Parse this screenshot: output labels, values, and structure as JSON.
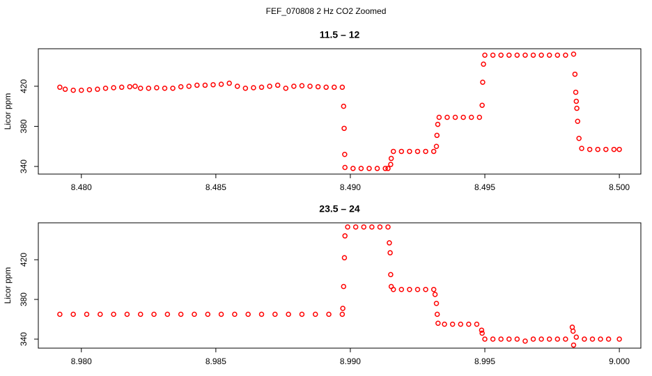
{
  "title": "FEF_070808  2 Hz CO2 Zoomed",
  "chart_data": [
    {
      "type": "scatter",
      "title": "11.5 – 12",
      "y_label": "Licor ppm",
      "color": "#ff0000",
      "x": [
        8.4792,
        8.4794,
        8.4797,
        8.48,
        8.4803,
        8.4806,
        8.4809,
        8.4812,
        8.4815,
        8.4818,
        8.482,
        8.4822,
        8.4825,
        8.4828,
        8.4831,
        8.4834,
        8.4837,
        8.484,
        8.4843,
        8.4846,
        8.4849,
        8.4852,
        8.4855,
        8.4858,
        8.4861,
        8.4864,
        8.4867,
        8.487,
        8.4873,
        8.4876,
        8.4879,
        8.4882,
        8.4885,
        8.4888,
        8.4891,
        8.4894,
        8.4897,
        8.48975,
        8.48977,
        8.48979,
        8.4898,
        8.4901,
        8.4904,
        8.4907,
        8.491,
        8.4913,
        8.4914,
        8.4915,
        8.49152,
        8.4916,
        8.4919,
        8.4922,
        8.4925,
        8.4928,
        8.4931,
        8.4932,
        8.49322,
        8.49325,
        8.4933,
        8.4936,
        8.4939,
        8.4942,
        8.4945,
        8.4948,
        8.4949,
        8.49492,
        8.49495,
        8.495,
        8.4953,
        8.4956,
        8.4959,
        8.4962,
        8.4965,
        8.4968,
        8.4971,
        8.4974,
        8.4977,
        8.498,
        8.4983,
        8.49835,
        8.49838,
        8.4984,
        8.49842,
        8.49845,
        8.4985,
        8.4986,
        8.4989,
        8.4992,
        8.4995,
        8.4998,
        8.5
      ],
      "values": [
        419,
        417,
        416,
        416,
        416.5,
        417,
        418,
        418.5,
        419,
        419.5,
        420,
        418,
        418,
        418.5,
        418,
        418,
        419.5,
        420,
        421,
        421,
        421.5,
        422,
        423,
        420,
        418,
        418.5,
        419,
        420,
        421,
        418,
        420,
        420.5,
        420,
        419.5,
        419,
        419,
        419,
        400,
        378,
        352,
        339,
        338,
        338,
        338,
        338,
        338,
        338,
        342,
        348,
        355,
        355,
        355,
        355,
        355,
        355,
        360,
        371,
        382,
        389,
        389,
        389,
        389,
        389,
        389,
        401,
        424,
        442,
        451,
        451,
        451,
        451,
        451,
        451,
        451,
        451,
        451,
        451,
        451,
        452,
        432,
        414,
        405,
        398,
        385,
        368,
        358,
        357,
        357,
        357,
        357,
        357
      ],
      "xlim": [
        8.4784,
        8.5008
      ],
      "xticks": [
        {
          "value": 8.48,
          "label": "8.480"
        },
        {
          "value": 8.485,
          "label": "8.485"
        },
        {
          "value": 8.49,
          "label": "8.490"
        },
        {
          "value": 8.495,
          "label": "8.495"
        },
        {
          "value": 8.5,
          "label": "8.500"
        }
      ],
      "ylim": [
        332.4,
        457.4
      ],
      "yticks": [
        340,
        380,
        420
      ]
    },
    {
      "type": "scatter",
      "title": "23.5 – 24",
      "y_label": "Licor ppm",
      "color": "#ff0000",
      "x": [
        8.9792,
        8.9797,
        8.9802,
        8.9807,
        8.9812,
        8.9817,
        8.9822,
        8.9827,
        8.9832,
        8.9837,
        8.9842,
        8.9847,
        8.9852,
        8.9857,
        8.9862,
        8.9867,
        8.9872,
        8.9877,
        8.9882,
        8.9887,
        8.9892,
        8.9897,
        8.98972,
        8.98975,
        8.98978,
        8.9898,
        8.9899,
        8.9902,
        8.9905,
        8.9908,
        8.9911,
        8.9914,
        8.99145,
        8.99148,
        8.9915,
        8.99152,
        8.9916,
        8.9919,
        8.9922,
        8.9925,
        8.9928,
        8.9931,
        8.99315,
        8.9932,
        8.99323,
        8.99326,
        8.9935,
        8.9938,
        8.9941,
        8.9944,
        8.9947,
        8.99488,
        8.9949,
        8.995,
        8.9953,
        8.9956,
        8.9959,
        8.9962,
        8.9965,
        8.9968,
        8.9971,
        8.9974,
        8.9977,
        8.998,
        8.99825,
        8.99828,
        8.9983,
        8.9984,
        8.9987,
        8.999,
        8.9993,
        8.9996,
        9.0
      ],
      "values": [
        365,
        365,
        365,
        365,
        365,
        365,
        365,
        365,
        365,
        365,
        365,
        365,
        365,
        365,
        365,
        365,
        365,
        365,
        365,
        365,
        365,
        365,
        371,
        393,
        422,
        444,
        453,
        453,
        453,
        453,
        453,
        453,
        437,
        427,
        405,
        393,
        390,
        390,
        390,
        390,
        390,
        390,
        385,
        376,
        365,
        356,
        355,
        355,
        355,
        355,
        355,
        349,
        346,
        340,
        340,
        340,
        340,
        340,
        338,
        340,
        340,
        340,
        340,
        340,
        352,
        348,
        334,
        342,
        340,
        340,
        340,
        340,
        340
      ],
      "xlim": [
        8.9784,
        9.0008
      ],
      "xticks": [
        {
          "value": 8.98,
          "label": "8.980"
        },
        {
          "value": 8.985,
          "label": "8.985"
        },
        {
          "value": 8.99,
          "label": "8.990"
        },
        {
          "value": 8.995,
          "label": "8.995"
        },
        {
          "value": 9.0,
          "label": "9.000"
        }
      ],
      "ylim": [
        330.9,
        457.2
      ],
      "yticks": [
        340,
        380,
        420
      ]
    }
  ]
}
